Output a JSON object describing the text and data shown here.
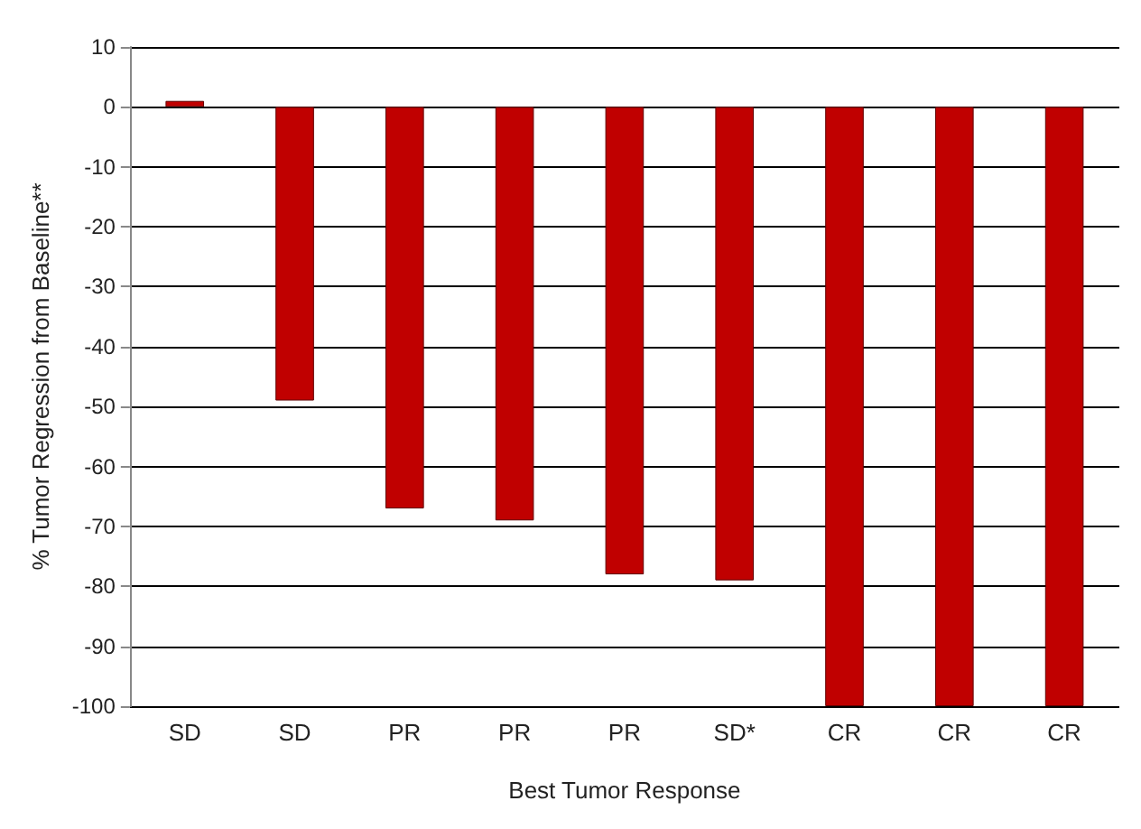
{
  "chart_data": {
    "type": "bar",
    "xlabel": "Best Tumor Response",
    "ylabel": "% Tumor Regression from Baseline**",
    "categories": [
      "SD",
      "SD",
      "PR",
      "PR",
      "PR",
      "SD*",
      "CR",
      "CR",
      "CR"
    ],
    "values": [
      1,
      -49,
      -67,
      -69,
      -78,
      -79,
      -100,
      -100,
      -100
    ],
    "color": "#c00000",
    "ylim": [
      -100,
      10
    ],
    "yticks": [
      -100,
      -90,
      -80,
      -70,
      -60,
      -50,
      -40,
      -30,
      -20,
      -10,
      0,
      10
    ],
    "grid": "y"
  }
}
